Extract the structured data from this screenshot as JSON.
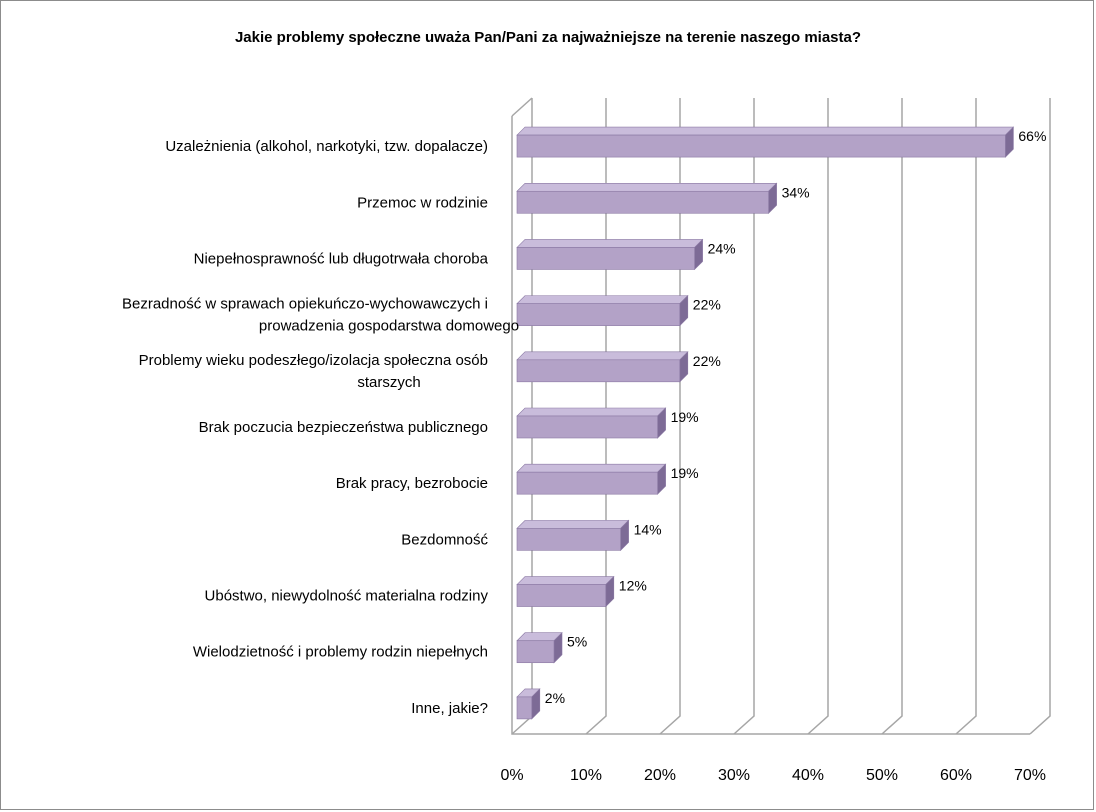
{
  "chart_data": {
    "type": "bar",
    "orientation": "horizontal",
    "title": "Jakie problemy społeczne uważa Pan/Pani za najważniejsze na terenie naszego miasta?",
    "categories": [
      [
        "Uzależnienia (alkohol, narkotyki,  tzw. dopalacze)"
      ],
      [
        "Przemoc w rodzinie"
      ],
      [
        "Niepełnosprawność lub długotrwała choroba"
      ],
      [
        "Bezradność w sprawach opiekuńczo-wychowawczych i",
        "prowadzenia gospodarstwa domowego"
      ],
      [
        "Problemy wieku podeszłego/izolacja społeczna osób",
        "starszych"
      ],
      [
        "Brak poczucia bezpieczeństwa publicznego"
      ],
      [
        "Brak pracy, bezrobocie"
      ],
      [
        "Bezdomność"
      ],
      [
        "Ubóstwo, niewydolność materialna rodziny"
      ],
      [
        "Wielodzietność i problemy rodzin niepełnych"
      ],
      [
        "Inne, jakie?"
      ]
    ],
    "values": [
      66,
      34,
      24,
      22,
      22,
      19,
      19,
      14,
      12,
      5,
      2
    ],
    "value_labels": [
      "66%",
      "34%",
      "24%",
      "22%",
      "22%",
      "19%",
      "19%",
      "14%",
      "12%",
      "5%",
      "2%"
    ],
    "xlim": [
      0,
      70
    ],
    "x_ticks": [
      "0%",
      "10%",
      "20%",
      "30%",
      "40%",
      "50%",
      "60%",
      "70%"
    ],
    "grid": true,
    "legend": "none",
    "colors": {
      "bar_front": "#b3a2c7",
      "bar_top": "#c9bcdb",
      "bar_side": "#7d6b96",
      "bar_edge": "#8a78a3",
      "grid": "#a6a6a6",
      "frame": "#8c8c8c"
    }
  }
}
